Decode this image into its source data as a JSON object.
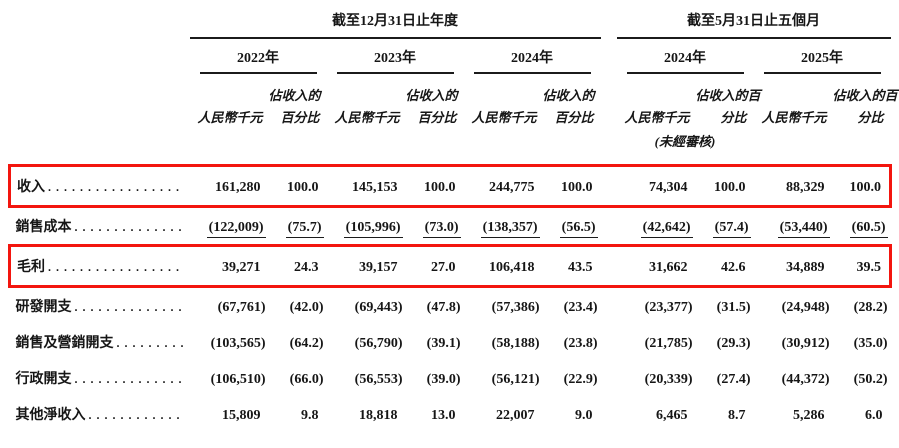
{
  "table": {
    "header": {
      "group1": {
        "title": "截至12月31日止年度",
        "years": [
          "2022年",
          "2023年",
          "2024年"
        ]
      },
      "group2": {
        "title": "截至5月31日止五個月",
        "years": [
          "2024年",
          "2025年"
        ]
      },
      "rmb": "人民幣千元",
      "pct_a1": "佔收入的",
      "pct_a2": "百分比",
      "pct_b1": "佔收入的百",
      "pct_b2": "分比",
      "unaudited": "(未經審核)"
    },
    "highlight_color": "#f3150e",
    "rows": [
      {
        "label": "收入",
        "highlight": true,
        "underline": false,
        "values": [
          "161,280",
          "100.0",
          "145,153",
          "100.0",
          "244,775",
          "100.0",
          "74,304",
          "100.0",
          "88,329",
          "100.0"
        ]
      },
      {
        "label": "銷售成本",
        "highlight": false,
        "underline": true,
        "values": [
          "(122,009)",
          "(75.7)",
          "(105,996)",
          "(73.0)",
          "(138,357)",
          "(56.5)",
          "(42,642)",
          "(57.4)",
          "(53,440)",
          "(60.5)"
        ]
      },
      {
        "label": "毛利",
        "highlight": true,
        "underline": false,
        "values": [
          "39,271",
          "24.3",
          "39,157",
          "27.0",
          "106,418",
          "43.5",
          "31,662",
          "42.6",
          "34,889",
          "39.5"
        ]
      },
      {
        "label": "研發開支",
        "highlight": false,
        "underline": false,
        "values": [
          "(67,761)",
          "(42.0)",
          "(69,443)",
          "(47.8)",
          "(57,386)",
          "(23.4)",
          "(23,377)",
          "(31.5)",
          "(24,948)",
          "(28.2)"
        ]
      },
      {
        "label": "銷售及營銷開支",
        "highlight": false,
        "underline": false,
        "values": [
          "(103,565)",
          "(64.2)",
          "(56,790)",
          "(39.1)",
          "(58,188)",
          "(23.8)",
          "(21,785)",
          "(29.3)",
          "(30,912)",
          "(35.0)"
        ]
      },
      {
        "label": "行政開支",
        "highlight": false,
        "underline": false,
        "values": [
          "(106,510)",
          "(66.0)",
          "(56,553)",
          "(39.0)",
          "(56,121)",
          "(22.9)",
          "(20,339)",
          "(27.4)",
          "(44,372)",
          "(50.2)"
        ]
      },
      {
        "label": "其他淨收入",
        "highlight": false,
        "underline": false,
        "values": [
          "15,809",
          "9.8",
          "18,818",
          "13.0",
          "22,007",
          "9.0",
          "6,465",
          "8.7",
          "5,286",
          "6.0"
        ]
      }
    ]
  }
}
